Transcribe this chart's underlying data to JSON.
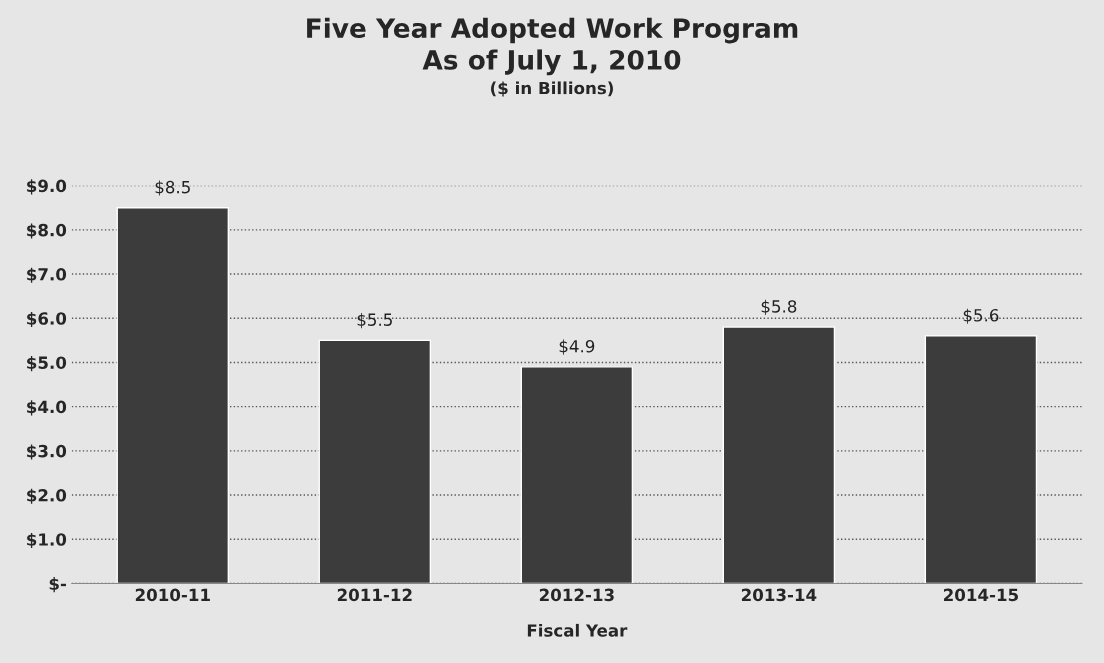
{
  "chart_data": {
    "type": "bar",
    "title": "Five Year Adopted Work Program\nAs of July 1, 2010",
    "subtitle": "($ in Billions)",
    "xlabel": "Fiscal Year",
    "categories": [
      "2010-11",
      "2011-12",
      "2012-13",
      "2013-14",
      "2014-15"
    ],
    "values": [
      8.5,
      5.5,
      4.9,
      5.8,
      5.6
    ],
    "value_labels": [
      "$8.5",
      "$5.5",
      "$4.9",
      "$5.8",
      "$5.6"
    ],
    "color": "#3c3c3c",
    "ylim": [
      0,
      9
    ],
    "yticks": [
      {
        "value": 0,
        "label": "$-"
      },
      {
        "value": 1,
        "label": "$1.0"
      },
      {
        "value": 2,
        "label": "$2.0"
      },
      {
        "value": 3,
        "label": "$3.0"
      },
      {
        "value": 4,
        "label": "$4.0"
      },
      {
        "value": 5,
        "label": "$5.0"
      },
      {
        "value": 6,
        "label": "$6.0"
      },
      {
        "value": 7,
        "label": "$7.0"
      },
      {
        "value": 8,
        "label": "$8.0"
      },
      {
        "value": 9,
        "label": "$9.0"
      }
    ],
    "grid": "y",
    "legend": false
  }
}
